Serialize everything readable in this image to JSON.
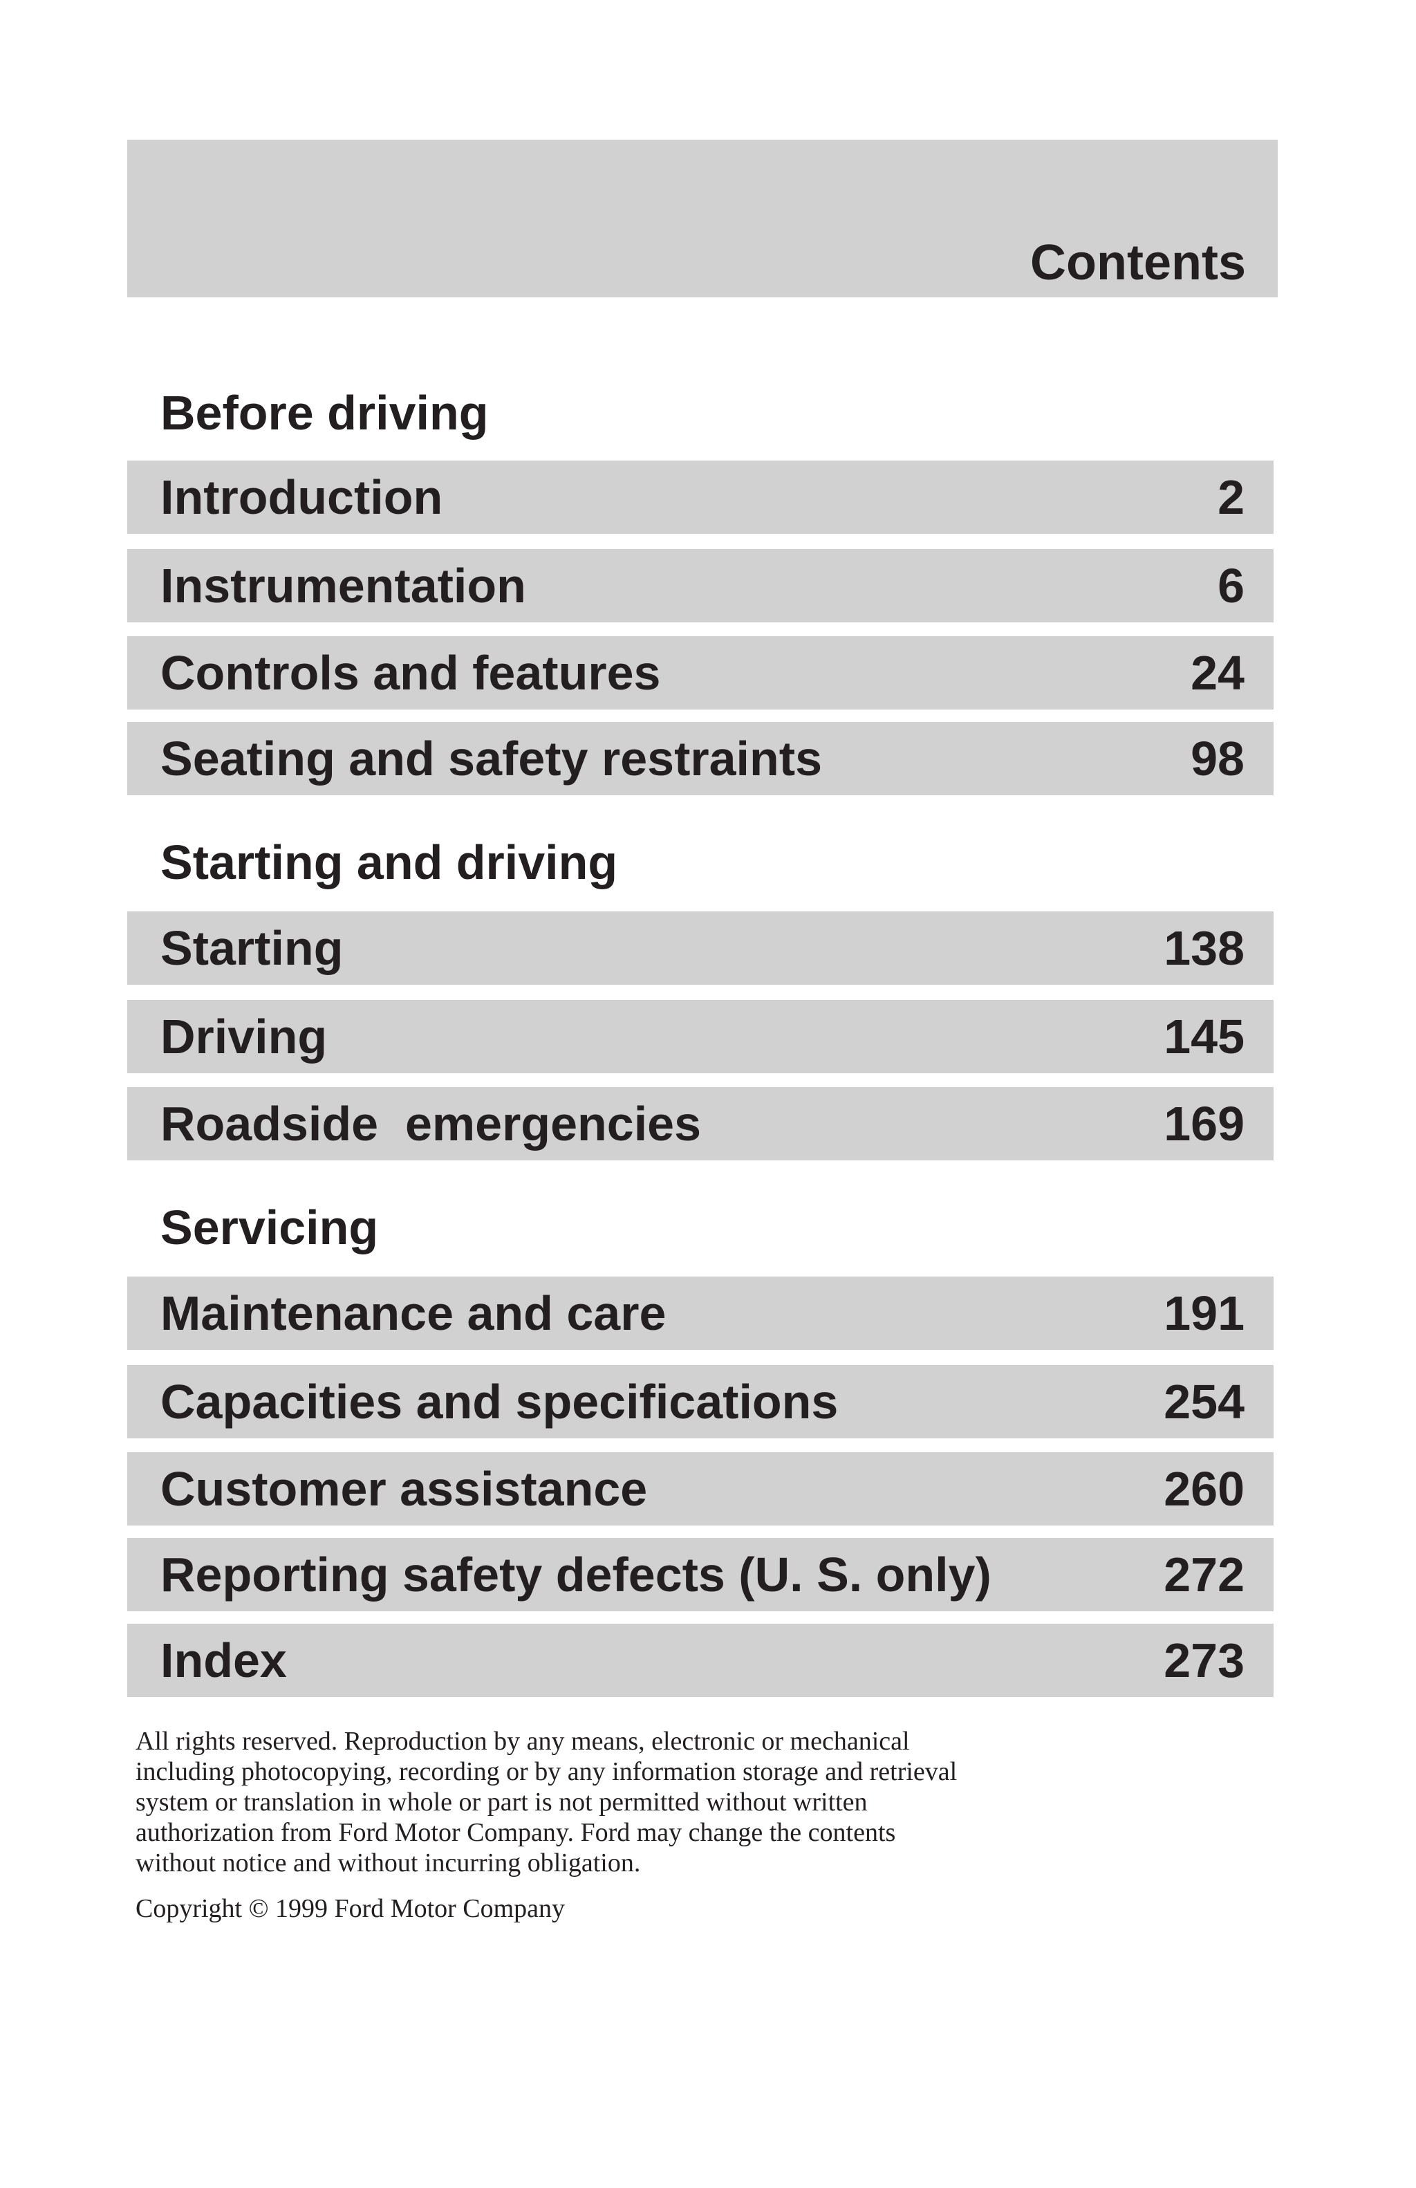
{
  "header": {
    "title": "Contents"
  },
  "sections": [
    {
      "heading": "Before driving",
      "items": [
        {
          "label": "Introduction",
          "page": "2"
        },
        {
          "label": "Instrumentation",
          "page": "6"
        },
        {
          "label": "Controls and features",
          "page": "24"
        },
        {
          "label": "Seating and safety restraints",
          "page": "98"
        }
      ]
    },
    {
      "heading": "Starting and driving",
      "items": [
        {
          "label": "Starting",
          "page": "138"
        },
        {
          "label": "Driving",
          "page": "145"
        },
        {
          "label": "Roadside  emergencies",
          "page": "169"
        }
      ]
    },
    {
      "heading": "Servicing",
      "items": [
        {
          "label": "Maintenance and care",
          "page": "191"
        },
        {
          "label": "Capacities and specifications",
          "page": "254"
        },
        {
          "label": "Customer assistance",
          "page": "260"
        },
        {
          "label": "Reporting safety defects (U. S. only)",
          "page": "272"
        },
        {
          "label": "Index",
          "page": "273"
        }
      ]
    }
  ],
  "footer": {
    "legal_lines": [
      "All rights reserved. Reproduction by any means, electronic or mechanical",
      "including photocopying, recording or by any information storage and retrieval",
      "system or translation in whole or part is not permitted without written",
      "authorization from Ford Motor Company. Ford may change the contents",
      "without notice and without incurring obligation."
    ],
    "copyright": "Copyright © 1999 Ford Motor Company"
  }
}
